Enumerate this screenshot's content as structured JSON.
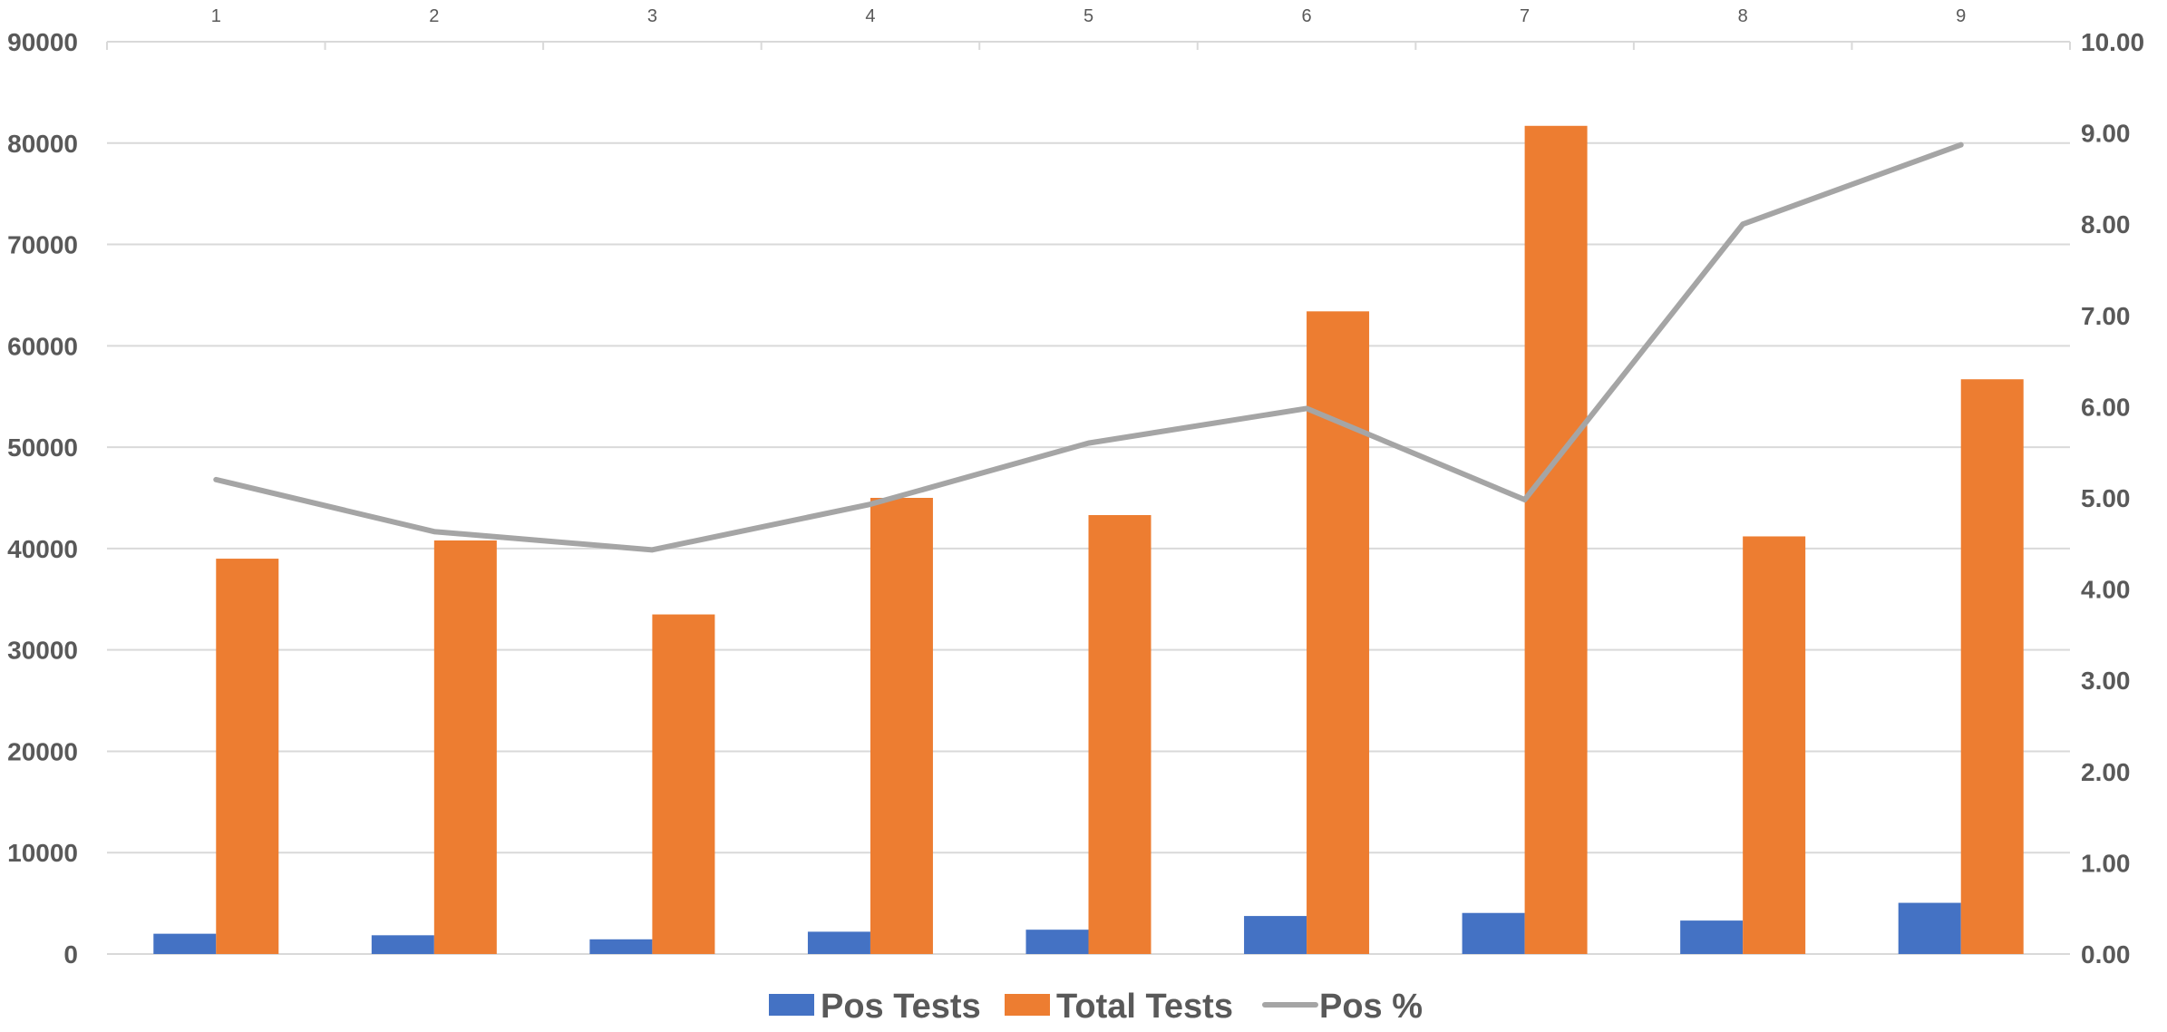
{
  "chart_data": {
    "type": "bar",
    "title": "",
    "categories": [
      "1",
      "2",
      "3",
      "4",
      "5",
      "6",
      "7",
      "8",
      "9"
    ],
    "series": [
      {
        "name": "Pos Tests",
        "type": "bar",
        "axis": "left",
        "color": "#4472C4",
        "values": [
          2000,
          1850,
          1450,
          2200,
          2400,
          3750,
          4050,
          3300,
          5050
        ]
      },
      {
        "name": "Total Tests",
        "type": "bar",
        "axis": "left",
        "color": "#ED7D31",
        "values": [
          39000,
          40800,
          33500,
          45000,
          43300,
          63400,
          81700,
          41200,
          56700
        ]
      },
      {
        "name": "Pos %",
        "type": "line",
        "axis": "right",
        "color": "#A5A5A5",
        "values": [
          5.2,
          4.63,
          4.43,
          4.93,
          5.6,
          5.98,
          4.98,
          8.0,
          8.87
        ]
      }
    ],
    "y_left": {
      "min": 0,
      "max": 90000,
      "ticks": [
        "0",
        "10000",
        "20000",
        "30000",
        "40000",
        "50000",
        "60000",
        "70000",
        "80000",
        "90000"
      ]
    },
    "y_right": {
      "min": 0,
      "max": 10,
      "ticks": [
        "0.00",
        "1.00",
        "2.00",
        "3.00",
        "4.00",
        "5.00",
        "6.00",
        "7.00",
        "8.00",
        "9.00",
        "10.00"
      ]
    },
    "x_axis_position": "top",
    "grid": true,
    "legend": "bottom-center"
  }
}
